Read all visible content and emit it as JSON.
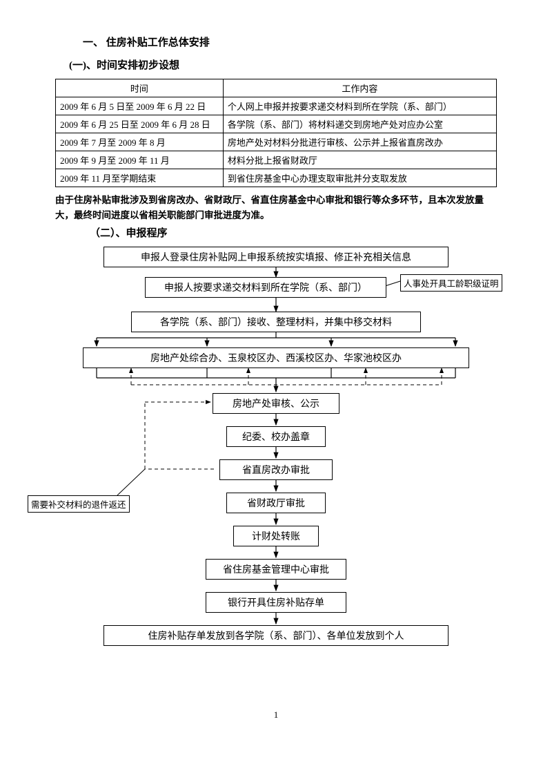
{
  "headings": {
    "main": "一、  住房补贴工作总体安排",
    "sub1": "(一)、时间安排初步设想",
    "sub2": "（二）、申报程序"
  },
  "table": {
    "headers": [
      "时间",
      "工作内容"
    ],
    "rows": [
      [
        "2009 年 6 月 5 日至 2009 年 6 月 22 日",
        "个人网上申报并按要求递交材料到所在学院（系、部门）"
      ],
      [
        "2009 年 6 月 25 日至 2009 年 6 月 28 日",
        "各学院（系、部门）将材料递交到房地产处对应办公室"
      ],
      [
        "2009 年 7 月至 2009 年 8 月",
        "房地产处对材料分批进行审核、公示并上报省直房改办"
      ],
      [
        "2009 年 9 月至 2009 年 11 月",
        "材料分批上报省财政厅"
      ],
      [
        "2009 年 11 月至学期结束",
        "到省住房基金中心办理支取审批并分支取发放"
      ]
    ]
  },
  "note": "由于住房补贴审批涉及到省房改办、省财政厅、省直住房基金中心审批和银行等众多环节，且本次发放量大，最终时间进度以省相关职能部门审批进度为准。",
  "flow": {
    "n1": "申报人登录住房补贴网上申报系统按实填报、修正补充相关信息",
    "n2": "申报人按要求递交材料到所在学院（系、部门）",
    "n3": "各学院（系、部门）接收、整理材料，并集中移交材料",
    "n4": "房地产处综合办、玉泉校区办、西溪校区办、华家池校区办",
    "n5": "房地产处审核、公示",
    "n6": "纪委、校办盖章",
    "n7": "省直房改办审批",
    "n8": "省财政厅审批",
    "n9": "计财处转账",
    "n10": "省住房基金管理中心审批",
    "n11": "银行开具住房补贴存单",
    "n12": "住房补贴存单发放到各学院（系、部门）、各单位发放到个人",
    "callout1": "人事处开具工龄职级证明",
    "callout2": "需要补交材料的退件返还"
  },
  "pagenum": "1",
  "style": {
    "border_color": "#000000",
    "background": "#ffffff",
    "arrow_solid": "solid",
    "arrow_dashed": "5,4"
  }
}
